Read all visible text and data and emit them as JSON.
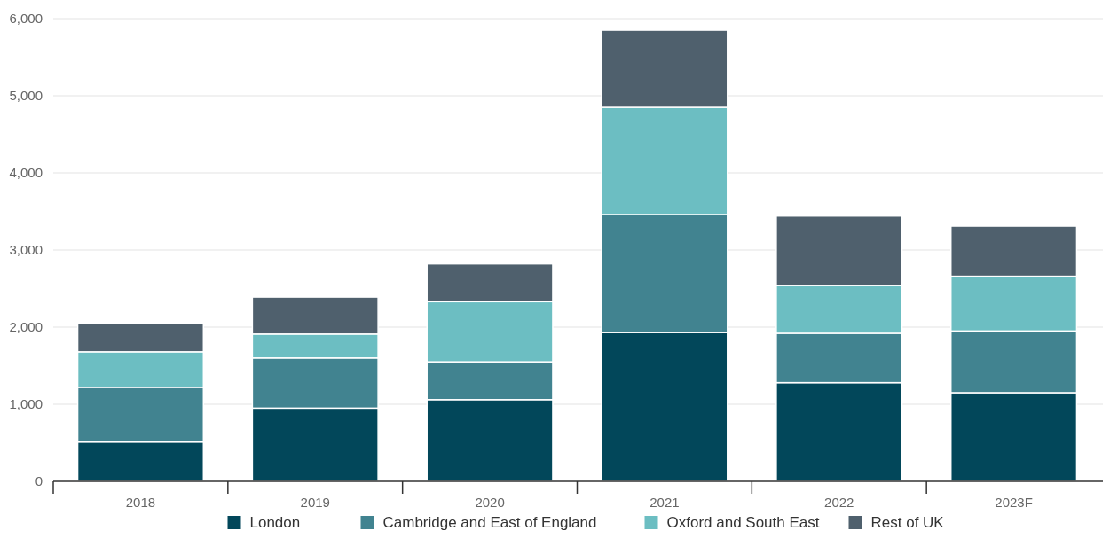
{
  "chart_data": {
    "type": "bar",
    "stacked": true,
    "categories": [
      "2018",
      "2019",
      "2020",
      "2021",
      "2022",
      "2023F"
    ],
    "series": [
      {
        "name": "London",
        "color": "#02475a",
        "values": [
          510,
          950,
          1060,
          1930,
          1280,
          1150
        ]
      },
      {
        "name": "Cambridge and East of England",
        "color": "#418390",
        "values": [
          710,
          650,
          490,
          1530,
          640,
          800
        ]
      },
      {
        "name": "Oxford and South East",
        "color": "#6cbec2",
        "values": [
          460,
          310,
          780,
          1390,
          620,
          710
        ]
      },
      {
        "name": "Rest of UK",
        "color": "#4f606d",
        "values": [
          370,
          480,
          490,
          1000,
          900,
          650
        ]
      }
    ],
    "ylim": [
      0,
      6000
    ],
    "yticks": [
      {
        "value": 0,
        "label": "0"
      },
      {
        "value": 1000,
        "label": "1,000"
      },
      {
        "value": 2000,
        "label": "2,000"
      },
      {
        "value": 3000,
        "label": "3,000"
      },
      {
        "value": 4000,
        "label": "4,000"
      },
      {
        "value": 5000,
        "label": "5,000"
      },
      {
        "value": 6000,
        "label": "6,000"
      }
    ],
    "grid": "y",
    "legend": "bottom"
  }
}
